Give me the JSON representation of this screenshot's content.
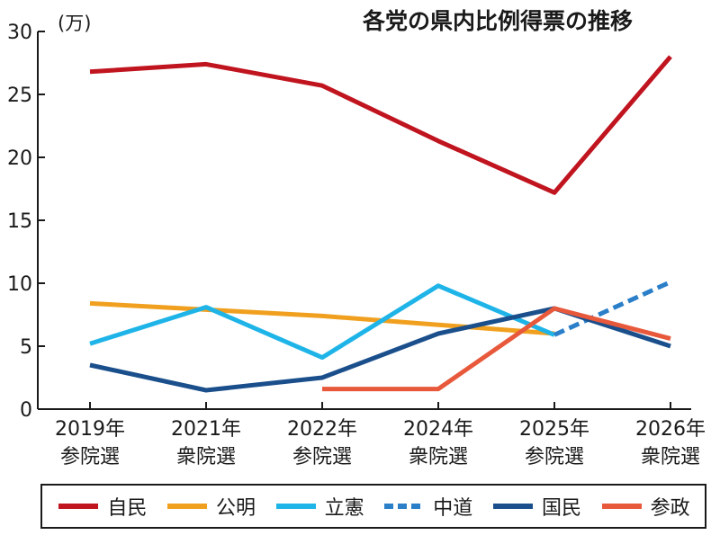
{
  "chart_data": {
    "type": "line",
    "title": "各党の県内比例得票の推移",
    "ylabel": "(万)",
    "ylim": [
      0,
      30
    ],
    "yticks": [
      0,
      5,
      10,
      15,
      20,
      25,
      30
    ],
    "categories": [
      [
        "2019年",
        "参院選"
      ],
      [
        "2021年",
        "衆院選"
      ],
      [
        "2022年",
        "参院選"
      ],
      [
        "2024年",
        "衆院選"
      ],
      [
        "2025年",
        "参院選"
      ],
      [
        "2026年",
        "衆院選"
      ]
    ],
    "grid": false,
    "legend_position": "bottom",
    "series": [
      {
        "name": "自民",
        "color": "#c0141f",
        "dashed": false,
        "values": [
          26.8,
          27.4,
          25.7,
          21.3,
          17.2,
          28.0
        ]
      },
      {
        "name": "公明",
        "color": "#f0a01e",
        "dashed": false,
        "values": [
          8.4,
          7.9,
          7.4,
          6.7,
          6.0,
          null
        ]
      },
      {
        "name": "立憲",
        "color": "#1fb4e8",
        "dashed": false,
        "values": [
          5.2,
          8.1,
          4.1,
          9.8,
          5.9,
          null
        ]
      },
      {
        "name": "中道",
        "color": "#2a7fc8",
        "dashed": true,
        "values": [
          null,
          null,
          null,
          null,
          5.9,
          10.1
        ]
      },
      {
        "name": "国民",
        "color": "#1a4f8c",
        "dashed": false,
        "values": [
          3.5,
          1.5,
          2.5,
          6.0,
          8.0,
          5.0
        ]
      },
      {
        "name": "参政",
        "color": "#e8593c",
        "dashed": false,
        "values": [
          null,
          null,
          1.6,
          1.6,
          8.0,
          5.6
        ]
      }
    ]
  }
}
